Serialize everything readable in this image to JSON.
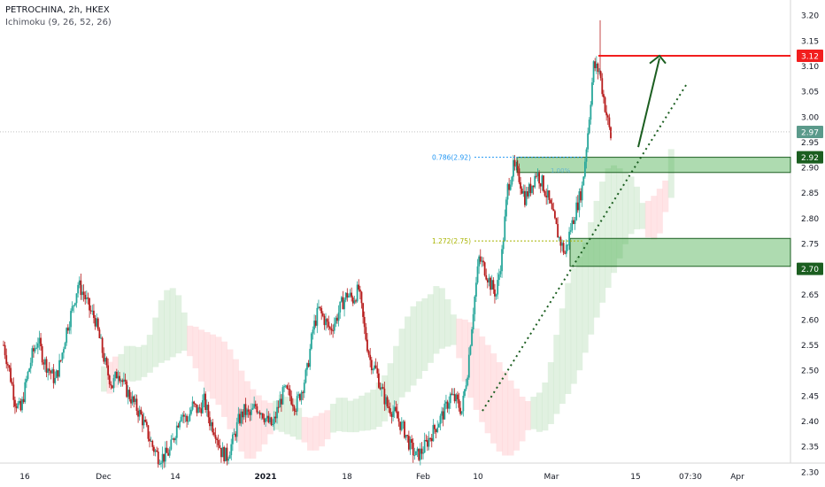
{
  "header": {
    "symbol_line": "PETROCHINA, 2h, HKEX",
    "indicator_line": "Ichimoku (9, 26, 52, 26)"
  },
  "colors": {
    "up": "#26a69a",
    "down": "#b71c1c",
    "zone_fill": "#4caf50",
    "zone_line": "#1b5e20",
    "red_line": "#f21e1e",
    "arrow": "#1b5e20",
    "fib_786": "#2196f3",
    "fib_1272": "#a8b400",
    "cloud_bull": "#c8e6c9",
    "cloud_bear": "#ffcdd2"
  },
  "chart_data": {
    "type": "candlestick",
    "title": "PETROCHINA, 2h, HKEX",
    "indicator": "Ichimoku (9, 26, 52, 26)",
    "ylim": [
      2.27,
      3.23
    ],
    "y_ticks": [
      "3.20",
      "3.15",
      "3.10",
      "3.05",
      "3.00",
      "2.95",
      "2.90",
      "2.85",
      "2.80",
      "2.75",
      "2.70",
      "2.65",
      "2.60",
      "2.55",
      "2.50",
      "2.45",
      "2.40",
      "2.35",
      "2.30"
    ],
    "x_ticks": [
      "16",
      "Dec",
      "14",
      "2021",
      "18",
      "Feb",
      "10",
      "Mar",
      "15",
      "07:30",
      "Apr"
    ],
    "price_labels": [
      {
        "value": 3.12,
        "text": "3.12",
        "color": "#f21e1e"
      },
      {
        "value": 2.97,
        "text": "2.97",
        "color": "#5b9a8b"
      },
      {
        "value": 2.92,
        "text": "2.92",
        "color": "#1b5e20"
      },
      {
        "value": 2.7,
        "text": "2.70",
        "color": "#1b5e20"
      }
    ],
    "fib_levels": [
      {
        "text": "0.786(2.92)",
        "value": 2.92
      },
      {
        "text": "1.272(2.75)",
        "value": 2.755
      }
    ],
    "fib_faint_labels": [
      "1.00%"
    ],
    "zones": [
      {
        "top": 2.92,
        "bottom": 2.89
      },
      {
        "top": 2.76,
        "bottom": 2.705
      }
    ],
    "resistance": 3.12,
    "current_price": 2.97,
    "path": [
      2.55,
      2.5,
      2.44,
      2.42,
      2.48,
      2.53,
      2.56,
      2.52,
      2.5,
      2.48,
      2.52,
      2.58,
      2.62,
      2.67,
      2.65,
      2.62,
      2.6,
      2.55,
      2.5,
      2.47,
      2.5,
      2.47,
      2.45,
      2.43,
      2.41,
      2.38,
      2.35,
      2.33,
      2.33,
      2.34,
      2.38,
      2.42,
      2.4,
      2.43,
      2.42,
      2.44,
      2.4,
      2.38,
      2.34,
      2.33,
      2.36,
      2.4,
      2.42,
      2.41,
      2.43,
      2.42,
      2.4,
      2.39,
      2.43,
      2.46,
      2.45,
      2.43,
      2.46,
      2.5,
      2.58,
      2.62,
      2.6,
      2.58,
      2.6,
      2.63,
      2.65,
      2.64,
      2.66,
      2.58,
      2.52,
      2.5,
      2.46,
      2.43,
      2.42,
      2.4,
      2.38,
      2.35,
      2.33,
      2.34,
      2.36,
      2.38,
      2.4,
      2.42,
      2.45,
      2.44,
      2.42,
      2.5,
      2.62,
      2.72,
      2.7,
      2.67,
      2.65,
      2.73,
      2.86,
      2.9,
      2.88,
      2.84,
      2.86,
      2.89,
      2.87,
      2.84,
      2.8,
      2.76,
      2.73,
      2.78,
      2.82,
      2.86,
      2.97,
      3.1,
      3.09,
      3.02,
      2.96
    ]
  }
}
